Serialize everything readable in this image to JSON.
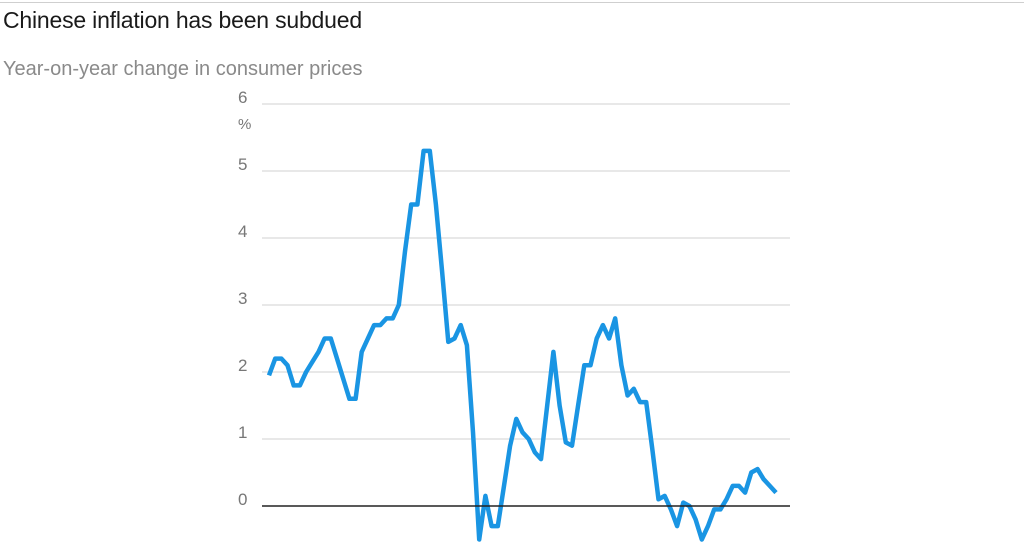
{
  "title": "Chinese inflation has been subdued",
  "subtitle": "Year-on-year change in consumer prices",
  "colors": {
    "line": "#1a95e3",
    "grid": "#d9d9d9",
    "axis": "#222222",
    "tick_text": "#777777"
  },
  "chart_data": {
    "type": "line",
    "title": "Chinese inflation has been subdued",
    "subtitle": "Year-on-year change in consumer prices",
    "y_unit": "%",
    "ylim": [
      0,
      6
    ],
    "yticks": [
      "0",
      "1",
      "2",
      "3",
      "4",
      "5",
      "6"
    ],
    "xlabel": "",
    "ylabel": "",
    "grid": true,
    "series": [
      {
        "values": [
          1.95,
          2.2,
          2.2,
          2.1,
          1.8,
          1.8,
          2.0,
          2.15,
          2.3,
          2.5,
          2.5,
          2.2,
          1.9,
          1.6,
          1.6,
          2.3,
          2.5,
          2.7,
          2.7,
          2.8,
          2.8,
          3.0,
          3.8,
          4.5,
          4.5,
          5.3,
          5.3,
          4.5,
          3.5,
          2.45,
          2.5,
          2.7,
          2.4,
          1.1,
          -0.5,
          0.15,
          -0.3,
          -0.3,
          0.3,
          0.9,
          1.3,
          1.1,
          1.0,
          0.8,
          0.7,
          1.5,
          2.3,
          1.5,
          0.95,
          0.9,
          1.5,
          2.1,
          2.1,
          2.5,
          2.7,
          2.5,
          2.8,
          2.1,
          1.65,
          1.75,
          1.55,
          1.55,
          0.85,
          0.1,
          0.15,
          -0.05,
          -0.3,
          0.05,
          0.0,
          -0.2,
          -0.5,
          -0.3,
          -0.05,
          -0.05,
          0.1,
          0.3,
          0.3,
          0.2,
          0.5,
          0.55,
          0.4,
          0.3,
          0.2
        ]
      }
    ]
  }
}
